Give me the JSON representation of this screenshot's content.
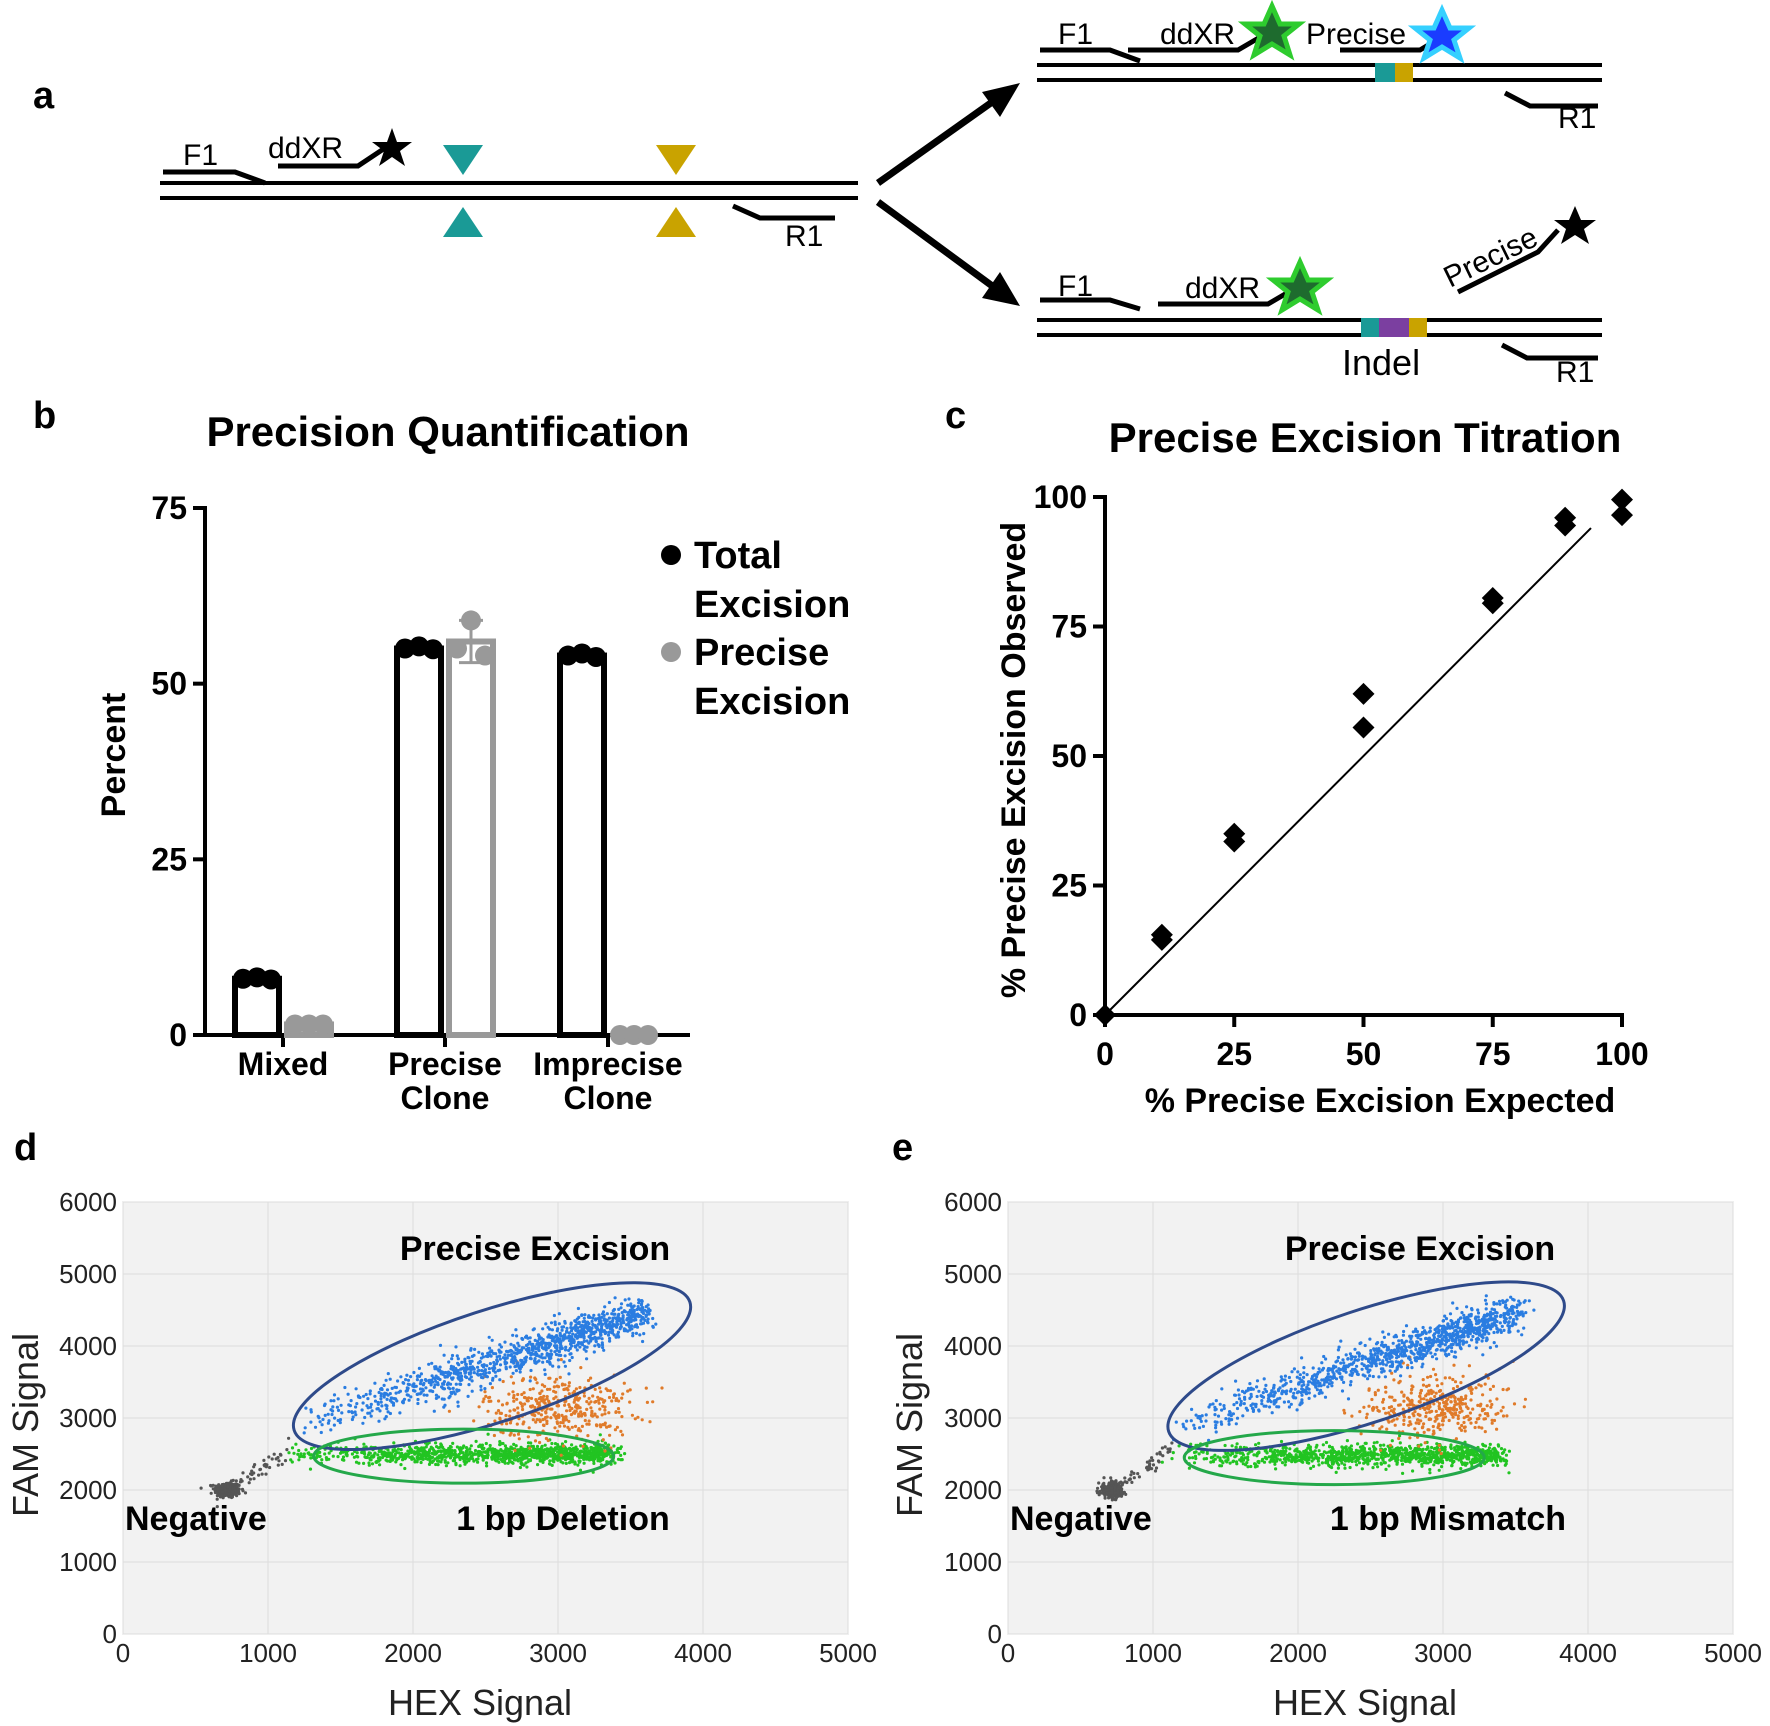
{
  "panel_labels": {
    "a": "a",
    "b": "b",
    "c": "c",
    "d": "d",
    "e": "e"
  },
  "colors": {
    "teal": "#1a9a96",
    "gold": "#c9a300",
    "purple": "#7b3fa0",
    "star_green": "#2ecc2e",
    "star_blue": "#1a3cff",
    "blue_cluster": "#2a7de1",
    "orange_cluster": "#e07b2a",
    "green_cluster": "#22c422",
    "negative_cluster": "#555555",
    "blue_gate": "#2e4a8a",
    "green_gate": "#24a84a",
    "gray_bar": "#999999"
  },
  "diagram_a": {
    "left": {
      "f1": "F1",
      "ddxr": "ddXR",
      "r1": "R1"
    },
    "top_right": {
      "f1": "F1",
      "ddxr": "ddXR",
      "precise": "Precise",
      "r1": "R1"
    },
    "bottom_right": {
      "f1": "F1",
      "ddxr": "ddXR",
      "precise": "Precise",
      "indel": "Indel",
      "r1": "R1"
    }
  },
  "chart_data": [
    {
      "id": "b",
      "type": "bar",
      "title": "Precision Quantification",
      "ylabel": "Percent",
      "xlabel": "",
      "ylim": [
        0,
        75
      ],
      "yticks": [
        "0",
        "25",
        "50",
        "75"
      ],
      "categories": [
        {
          "line1": "Mixed",
          "line2": ""
        },
        {
          "line1": "Precise",
          "line2": "Clone"
        },
        {
          "line1": "Imprecise",
          "line2": "Clone"
        }
      ],
      "series": [
        {
          "name": "Total Excision",
          "legend_line1": "Total",
          "legend_line2": "Excision",
          "color": "#000000",
          "values": [
            8,
            55,
            54
          ],
          "points": [
            [
              8,
              8.2,
              7.9
            ],
            [
              55,
              55.3,
              54.9
            ],
            [
              54,
              54.3,
              53.8
            ]
          ]
        },
        {
          "name": "Precise Excision",
          "legend_line1": "Precise",
          "legend_line2": "Excision",
          "color": "#999999",
          "values": [
            1.5,
            56,
            0
          ],
          "error": [
            null,
            3,
            null
          ],
          "points": [
            [
              1.5,
              1.5,
              1.5
            ],
            [
              55,
              59,
              54
            ],
            [
              0,
              0,
              0
            ]
          ]
        }
      ],
      "legend_position": "top-right"
    },
    {
      "id": "c",
      "type": "scatter",
      "title": "Precise Excision Titration",
      "xlabel": "% Precise Excision Expected",
      "ylabel": "% Precise Excision Observed",
      "xlim": [
        0,
        100
      ],
      "ylim": [
        0,
        100
      ],
      "xticks": [
        "0",
        "25",
        "50",
        "75",
        "100"
      ],
      "yticks": [
        "0",
        "25",
        "50",
        "75",
        "100"
      ],
      "points": [
        [
          0,
          0
        ],
        [
          11,
          14.5
        ],
        [
          11,
          15.5
        ],
        [
          25,
          33.5
        ],
        [
          25,
          35
        ],
        [
          50,
          55.5
        ],
        [
          50,
          62
        ],
        [
          75,
          79.5
        ],
        [
          75,
          80.5
        ],
        [
          89,
          94.5
        ],
        [
          89,
          96
        ],
        [
          100,
          96.5
        ],
        [
          100,
          99.5
        ]
      ],
      "fit_line": {
        "slope": 1.0,
        "intercept": 0,
        "x_range": [
          0,
          94
        ]
      }
    },
    {
      "id": "d",
      "type": "scatter",
      "xlabel": "HEX Signal",
      "ylabel": "FAM Signal",
      "xlim": [
        0,
        5000
      ],
      "ylim": [
        0,
        6000
      ],
      "xticks": [
        "0",
        "1000",
        "2000",
        "3000",
        "4000",
        "5000"
      ],
      "yticks": [
        "0",
        "1000",
        "2000",
        "3000",
        "4000",
        "5000",
        "6000"
      ],
      "grid": true,
      "clusters": [
        {
          "name": "Negative",
          "color": "#555555",
          "center": [
            720,
            2000
          ]
        },
        {
          "name": "Precise Excision",
          "color": "#2a7de1",
          "from": [
            1150,
            2850
          ],
          "to": [
            3600,
            4450
          ]
        },
        {
          "name": "orange",
          "color": "#e07b2a",
          "center": [
            3000,
            3150
          ]
        },
        {
          "name": "1 bp Deletion",
          "color": "#22c422",
          "center": [
            2350,
            2500
          ]
        }
      ],
      "labels": {
        "top": "Precise Excision",
        "negative": "Negative",
        "bottom": "1 bp Deletion"
      }
    },
    {
      "id": "e",
      "type": "scatter",
      "xlabel": "HEX Signal",
      "ylabel": "FAM Signal",
      "xlim": [
        0,
        5000
      ],
      "ylim": [
        0,
        6000
      ],
      "xticks": [
        "0",
        "1000",
        "2000",
        "3000",
        "4000",
        "5000"
      ],
      "yticks": [
        "0",
        "1000",
        "2000",
        "3000",
        "4000",
        "5000",
        "6000"
      ],
      "grid": true,
      "clusters": [
        {
          "name": "Negative",
          "color": "#555555",
          "center": [
            720,
            2000
          ]
        },
        {
          "name": "Precise Excision",
          "color": "#2a7de1",
          "from": [
            1100,
            2850
          ],
          "to": [
            3500,
            4450
          ]
        },
        {
          "name": "orange",
          "color": "#e07b2a",
          "center": [
            2950,
            3150
          ]
        },
        {
          "name": "1 bp Mismatch",
          "color": "#22c422",
          "center": [
            2250,
            2480
          ]
        }
      ],
      "labels": {
        "top": "Precise Excision",
        "negative": "Negative",
        "bottom": "1 bp Mismatch"
      }
    }
  ]
}
